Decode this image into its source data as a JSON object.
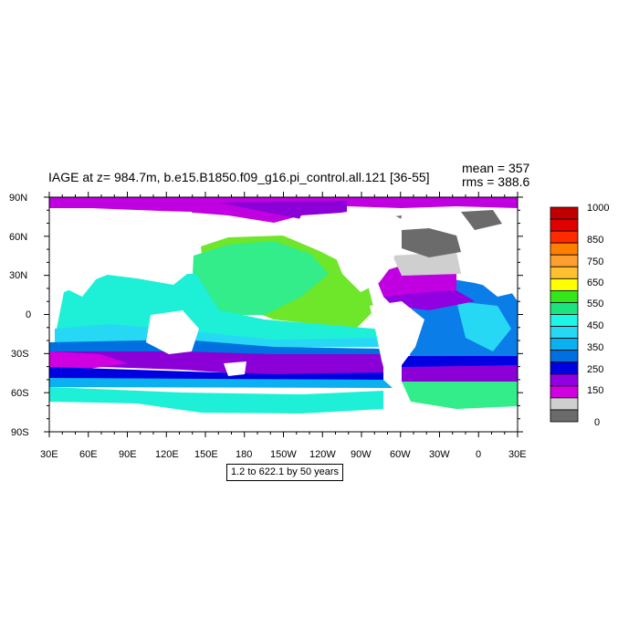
{
  "title": "IAGE at z= 984.7m, b.e15.B1850.f09_g16.pi_control.all.121 [36-55]",
  "stats": {
    "mean": "mean = 357",
    "rms": "rms = 388.6"
  },
  "subtitle": "1.2 to 622.1 by 50 years",
  "axes": {
    "y_ticks": [
      "90N",
      "60N",
      "30N",
      "0",
      "30S",
      "60S",
      "90S"
    ],
    "x_ticks": [
      "30E",
      "60E",
      "90E",
      "120E",
      "150E",
      "180",
      "150W",
      "120W",
      "90W",
      "60W",
      "30W",
      "0",
      "30E"
    ]
  },
  "colorbar": {
    "labels": [
      "1000",
      "850",
      "750",
      "650",
      "550",
      "450",
      "350",
      "250",
      "150",
      "0"
    ],
    "colors": [
      "#c00000",
      "#e00000",
      "#ff2a00",
      "#ff7f00",
      "#ff9f30",
      "#ffc030",
      "#ffff00",
      "#33e81a",
      "#1de37e",
      "#1ef7e6",
      "#27d8f5",
      "#0ab0f0",
      "#0070e0",
      "#0000e0",
      "#9000e0",
      "#d000e0",
      "#cfcfcf",
      "#6b6b6b"
    ]
  },
  "colors": {
    "land": "#ffffff",
    "arctic": "#c000e0",
    "southern_band": "#8a00d6",
    "pacific_north": "#6ee62a",
    "pacific_mid": "#33ec8a",
    "pacific_tropic": "#1ef0d8",
    "atlantic": "#0a7de8",
    "med": "#cdcdcd",
    "nordic": "#6b6b6b"
  }
}
